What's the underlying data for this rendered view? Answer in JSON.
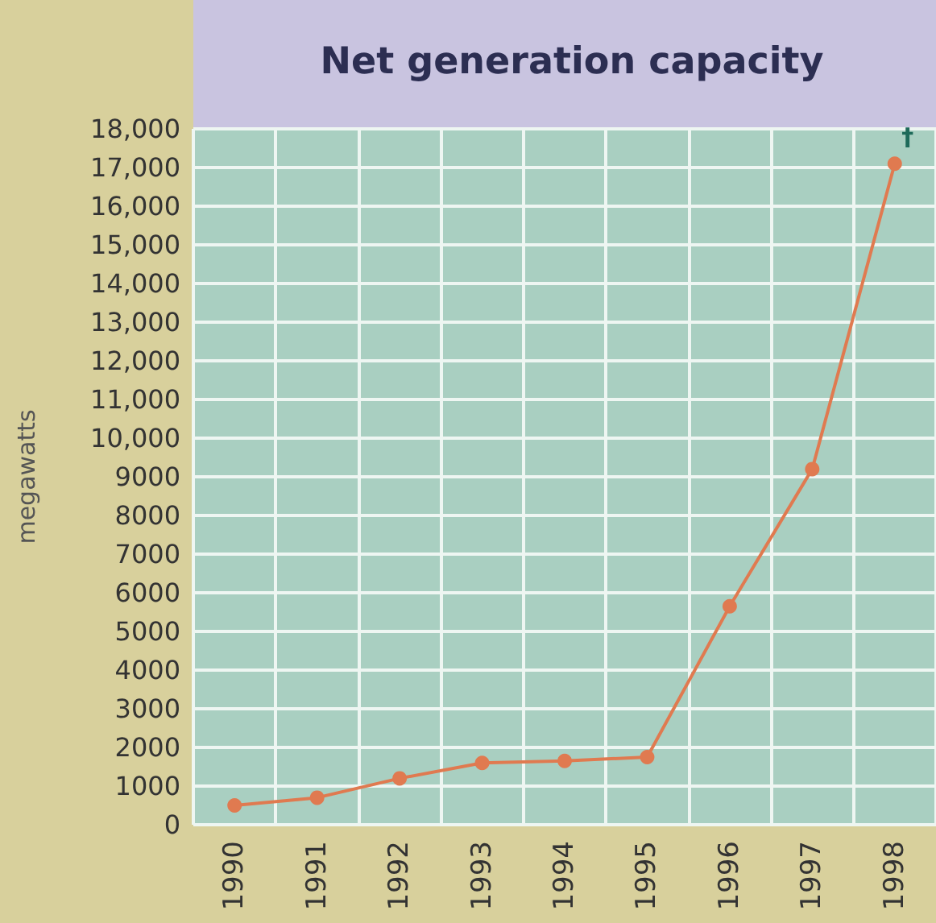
{
  "chart_data": {
    "type": "line",
    "title": "Net generation capacity",
    "ylabel": "megawatts",
    "categories": [
      "1990",
      "1991",
      "1992",
      "1993",
      "1994",
      "1995",
      "1996",
      "1997",
      "1998"
    ],
    "series": [
      {
        "color": "#e07a50",
        "values": [
          500,
          700,
          1200,
          1600,
          1650,
          1750,
          5650,
          9200,
          17100
        ]
      }
    ],
    "ylim": [
      0,
      18000
    ],
    "yticks": [
      0,
      1000,
      2000,
      3000,
      4000,
      5000,
      6000,
      7000,
      8000,
      9000,
      {
        "value": 10000,
        "label": "10,000"
      },
      {
        "value": 11000,
        "label": "11,000"
      },
      {
        "value": 12000,
        "label": "12,000"
      },
      {
        "value": 13000,
        "label": "13,000"
      },
      {
        "value": 14000,
        "label": "14,000"
      },
      {
        "value": 15000,
        "label": "15,000"
      },
      {
        "value": 16000,
        "label": "16,000"
      },
      {
        "value": 17000,
        "label": "17,000"
      },
      {
        "value": 18000,
        "label": "18,000"
      }
    ],
    "annotations": [
      {
        "text": "†",
        "x": "1998",
        "y": 17100
      }
    ],
    "grid": true,
    "marker": "circle",
    "line_style": "solid"
  }
}
